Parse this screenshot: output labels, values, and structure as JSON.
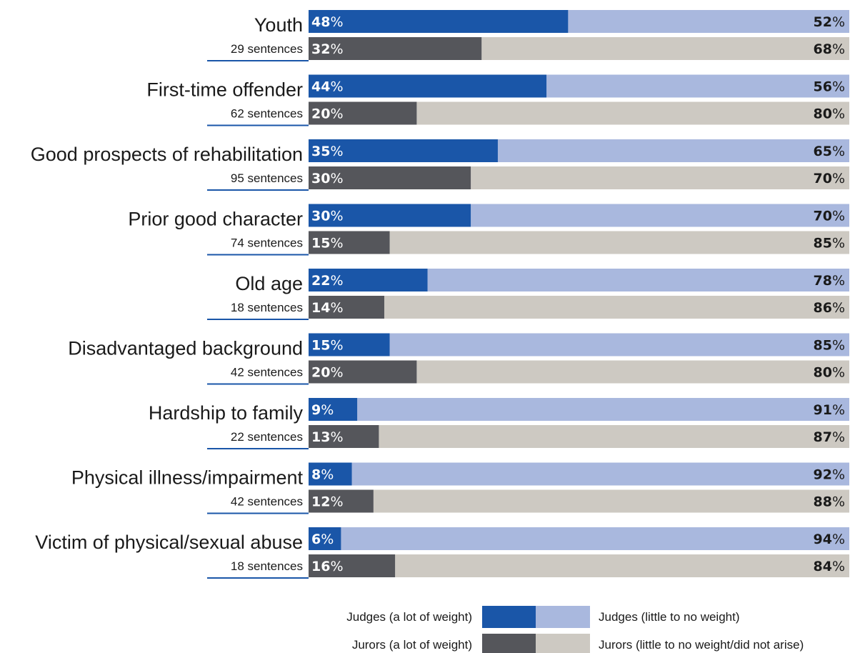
{
  "chart_data": {
    "type": "bar",
    "orientation": "horizontal",
    "stacked": true,
    "unit": "%",
    "categories": [
      "Youth",
      "First-time offender",
      "Good prospects of rehabilitation",
      "Prior good character",
      "Old age",
      "Disadvantaged background",
      "Hardship to family",
      "Physical illness/impairment",
      "Victim of physical/sexual abuse"
    ],
    "sentence_counts": [
      "29 sentences",
      "62 sentences",
      "95 sentences",
      "74 sentences",
      "18 sentences",
      "42 sentences",
      "22 sentences",
      "42 sentences",
      "18 sentences"
    ],
    "series": [
      {
        "name": "Judges (a lot of weight)",
        "group": "judges",
        "part": "a_lot",
        "color": "#1a56a8",
        "values": [
          48,
          44,
          35,
          30,
          22,
          15,
          9,
          8,
          6
        ]
      },
      {
        "name": "Judges (little to no weight)",
        "group": "judges",
        "part": "little",
        "color": "#a9b8de",
        "values": [
          52,
          56,
          65,
          70,
          78,
          85,
          91,
          92,
          94
        ]
      },
      {
        "name": "Jurors (a lot of weight)",
        "group": "jurors",
        "part": "a_lot",
        "color": "#55565b",
        "values": [
          32,
          20,
          30,
          15,
          14,
          20,
          13,
          12,
          16
        ]
      },
      {
        "name": "Jurors (little to no weight/did not arise)",
        "group": "jurors",
        "part": "little",
        "color": "#cdc9c2",
        "values": [
          68,
          80,
          70,
          85,
          86,
          80,
          87,
          88,
          84
        ]
      }
    ],
    "xlim": [
      0,
      100
    ],
    "legend_position": "bottom-right",
    "grid": false,
    "colors": {
      "label_text": "#1a1a1a",
      "dark_pct_text": "#ffffff",
      "accent_line": "#1a56a8"
    }
  }
}
